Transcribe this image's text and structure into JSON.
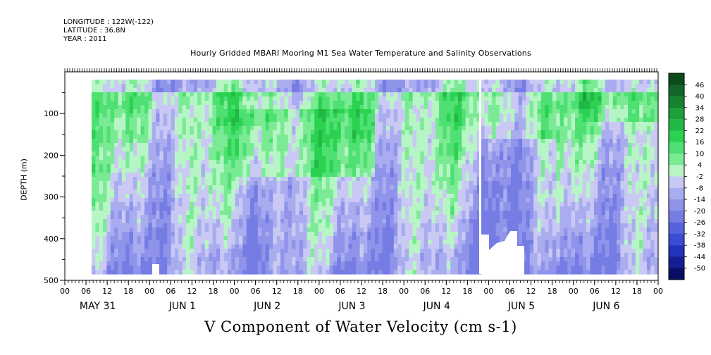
{
  "meta": {
    "longitude": "LONGITUDE : 122W(-122)",
    "latitude": "LATITUDE : 36.8N",
    "year": "YEAR : 2011"
  },
  "chart_data": {
    "type": "heatmap",
    "title": "Hourly Gridded MBARI Mooring M1 Sea Water Temperature and Salinity Observations",
    "xlabel": "",
    "ylabel": "DEPTH (m)",
    "variable_label": "V Component of Water Velocity (cm s-1)",
    "y_axis": {
      "range": [
        500,
        0
      ],
      "ticks": [
        100,
        200,
        300,
        400,
        500
      ],
      "tick_labels": [
        "100",
        "200",
        "300",
        "400",
        "500"
      ]
    },
    "x_axis": {
      "unit": "hours",
      "hour_ticks": [
        "00",
        "06",
        "12",
        "18",
        "00",
        "06",
        "12",
        "18",
        "00",
        "06",
        "12",
        "18",
        "00",
        "06",
        "12",
        "18",
        "00",
        "06",
        "12",
        "18",
        "00",
        "06",
        "12",
        "18",
        "00",
        "06",
        "12",
        "18",
        "00"
      ],
      "day_labels": [
        "MAY 31",
        "JUN  1",
        "JUN  2",
        "JUN  3",
        "JUN  4",
        "JUN  5",
        "JUN  6"
      ]
    },
    "colorbar": {
      "levels": [
        "46",
        "40",
        "34",
        "28",
        "22",
        "16",
        "10",
        "4",
        "-2",
        "-8",
        "-14",
        "-20",
        "-26",
        "-32",
        "-38",
        "-44",
        "-50"
      ],
      "colors": [
        "#0d4a1c",
        "#13652a",
        "#178232",
        "#1f9e3c",
        "#22b846",
        "#2ad24f",
        "#4ee072",
        "#7aeb94",
        "#b7f5c6",
        "#c9c9f4",
        "#a9adf0",
        "#8f94ea",
        "#757ce4",
        "#5663dc",
        "#3a4bd4",
        "#2234bb",
        "#131f93",
        "#080f63"
      ]
    },
    "grid": false,
    "legend_position": "right"
  }
}
